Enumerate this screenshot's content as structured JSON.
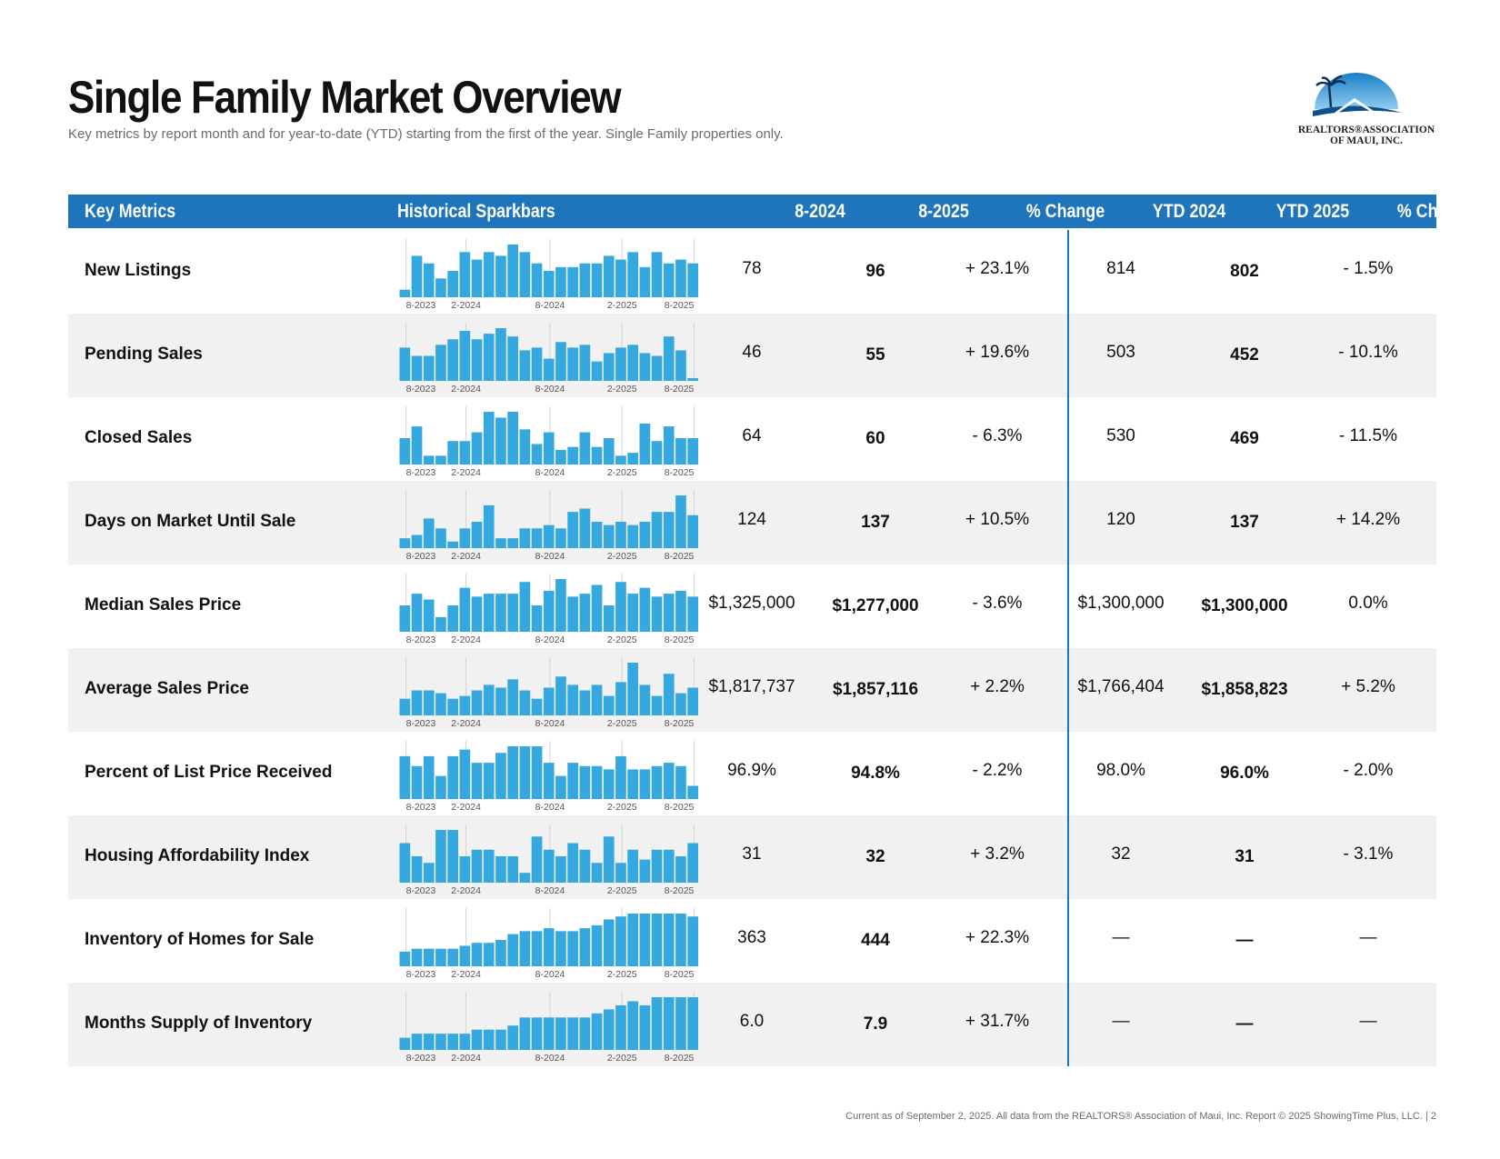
{
  "title": "Single Family Market Overview",
  "subtitle": "Key metrics by report month and for year-to-date (YTD) starting from the first of the year. Single Family properties only.",
  "logo": {
    "line1": "REALTORS®ASSOCIATION",
    "line2": "OF MAUI, INC."
  },
  "headers": [
    "Key Metrics",
    "Historical Sparkbars",
    "8-2024",
    "8-2025",
    "% Change",
    "YTD 2024",
    "YTD 2025",
    "% Change"
  ],
  "spark_axis_labels": [
    "8-2023",
    "2-2024",
    "8-2024",
    "2-2025",
    "8-2025"
  ],
  "colors": {
    "header": "#1f75bb",
    "bar": "#35a8e0",
    "alt_row": "#f1f1f1"
  },
  "rows": [
    {
      "name": "New Listings",
      "m2024": "78",
      "m2025": "96",
      "chg": "+ 23.1%",
      "ytd2024": "814",
      "ytd2025": "802",
      "ytdchg": "- 1.5%",
      "spark": [
        2,
        11,
        9,
        5,
        7,
        12,
        10,
        12,
        11,
        14,
        12,
        9,
        7,
        8,
        8,
        9,
        9,
        11,
        10,
        12,
        8,
        12,
        9,
        10,
        9
      ]
    },
    {
      "name": "Pending Sales",
      "m2024": "46",
      "m2025": "55",
      "chg": "+ 19.6%",
      "ytd2024": "503",
      "ytd2025": "452",
      "ytdchg": "- 10.1%",
      "spark": [
        12,
        9,
        9,
        13,
        15,
        18,
        15,
        17,
        19,
        16,
        11,
        12,
        8,
        14,
        12,
        13,
        7,
        10,
        12,
        13,
        10,
        9,
        16,
        11,
        1
      ]
    },
    {
      "name": "Closed Sales",
      "m2024": "64",
      "m2025": "60",
      "chg": "- 6.3%",
      "ytd2024": "530",
      "ytd2025": "469",
      "ytdchg": "- 11.5%",
      "spark": [
        9,
        13,
        3,
        3,
        8,
        8,
        11,
        18,
        16,
        18,
        12,
        7,
        11,
        5,
        6,
        11,
        6,
        9,
        3,
        4,
        14,
        8,
        13,
        9,
        9
      ]
    },
    {
      "name": "Days on Market Until Sale",
      "m2024": "124",
      "m2025": "137",
      "chg": "+ 10.5%",
      "ytd2024": "120",
      "ytd2025": "137",
      "ytdchg": "+ 14.2%",
      "spark": [
        3,
        4,
        9,
        6,
        2,
        6,
        8,
        13,
        3,
        3,
        6,
        6,
        7,
        6,
        11,
        12,
        8,
        7,
        8,
        7,
        8,
        11,
        11,
        16,
        10
      ]
    },
    {
      "name": "Median Sales Price",
      "m2024": "$1,325,000",
      "m2025": "$1,277,000",
      "chg": "- 3.6%",
      "ytd2024": "$1,300,000",
      "ytd2025": "$1,300,000",
      "ytdchg": "0.0%",
      "spark": [
        9,
        13,
        11,
        5,
        9,
        15,
        12,
        13,
        13,
        13,
        17,
        9,
        14,
        18,
        12,
        13,
        16,
        9,
        17,
        13,
        15,
        12,
        13,
        14,
        12
      ]
    },
    {
      "name": "Average Sales Price",
      "m2024": "$1,817,737",
      "m2025": "$1,857,116",
      "chg": "+ 2.2%",
      "ytd2024": "$1,766,404",
      "ytd2025": "$1,858,823",
      "ytdchg": "+ 5.2%",
      "spark": [
        6,
        9,
        9,
        8,
        6,
        7,
        9,
        11,
        10,
        13,
        9,
        6,
        10,
        14,
        11,
        9,
        11,
        7,
        12,
        19,
        11,
        7,
        15,
        8,
        10
      ]
    },
    {
      "name": "Percent of List Price Received",
      "m2024": "96.9%",
      "m2025": "94.8%",
      "chg": "- 2.2%",
      "ytd2024": "98.0%",
      "ytd2025": "96.0%",
      "ytdchg": "- 2.0%",
      "spark": [
        13,
        10,
        13,
        7,
        13,
        15,
        11,
        11,
        14,
        16,
        16,
        16,
        11,
        7,
        11,
        10,
        10,
        9,
        13,
        9,
        9,
        10,
        11,
        10,
        4
      ]
    },
    {
      "name": "Housing Affordability Index",
      "m2024": "31",
      "m2025": "32",
      "chg": "+ 3.2%",
      "ytd2024": "32",
      "ytd2025": "31",
      "ytdchg": "- 3.1%",
      "spark": [
        12,
        8,
        6,
        16,
        16,
        8,
        10,
        10,
        8,
        8,
        3,
        14,
        10,
        8,
        12,
        10,
        6,
        14,
        6,
        10,
        7,
        10,
        10,
        8,
        12
      ]
    },
    {
      "name": "Inventory of Homes for Sale",
      "m2024": "363",
      "m2025": "444",
      "chg": "+ 22.3%",
      "ytd2024": "—",
      "ytd2025": "—",
      "ytdchg": "—",
      "spark": [
        5,
        6,
        6,
        6,
        6,
        7,
        8,
        8,
        9,
        11,
        12,
        12,
        13,
        12,
        12,
        13,
        14,
        16,
        17,
        18,
        18,
        18,
        18,
        18,
        17
      ]
    },
    {
      "name": "Months Supply of Inventory",
      "m2024": "6.0",
      "m2025": "7.9",
      "chg": "+ 31.7%",
      "ytd2024": "—",
      "ytd2025": "—",
      "ytdchg": "—",
      "spark": [
        3,
        4,
        4,
        4,
        4,
        4,
        5,
        5,
        5,
        6,
        8,
        8,
        8,
        8,
        8,
        8,
        9,
        10,
        11,
        12,
        11,
        13,
        13,
        13,
        13
      ]
    }
  ],
  "footer": "Current as of September 2, 2025. All data from the REALTORS® Association of Maui, Inc. Report © 2025 ShowingTime Plus, LLC.  |  2"
}
